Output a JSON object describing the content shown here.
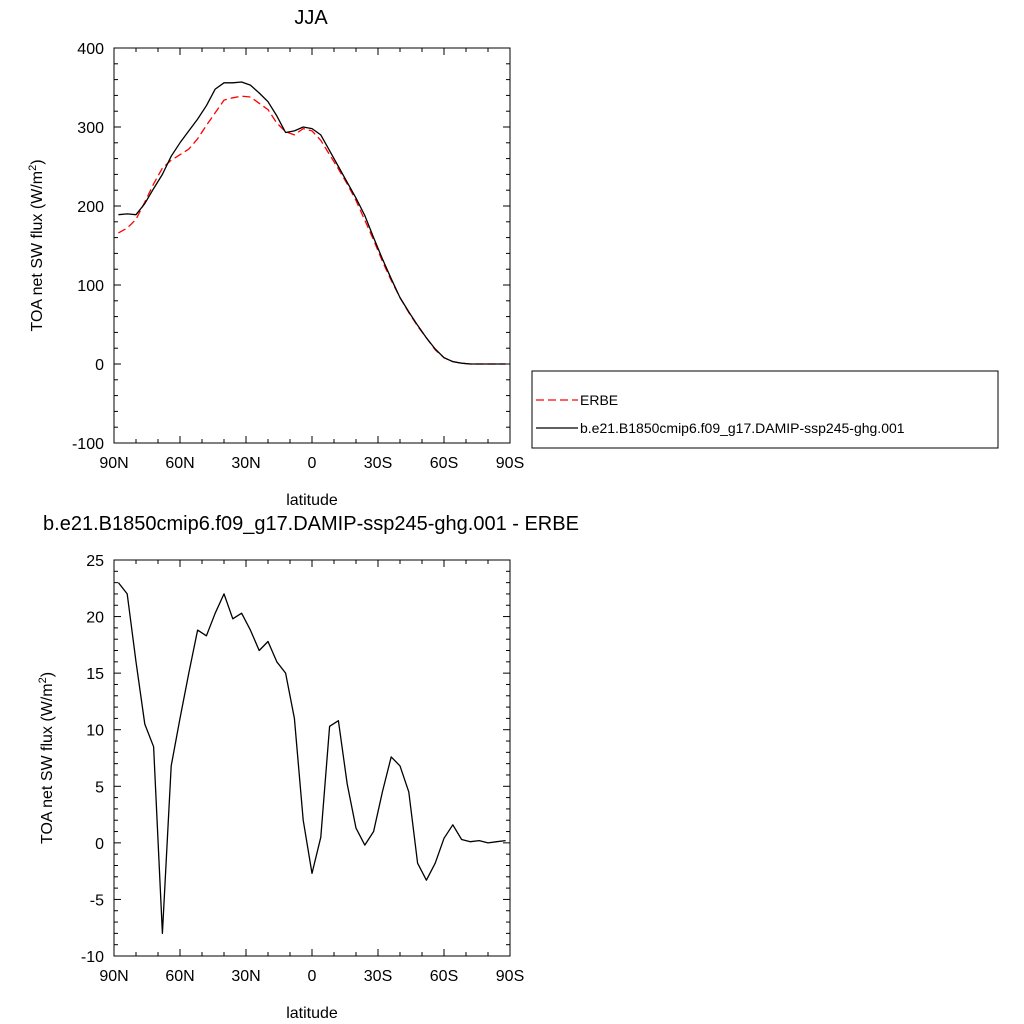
{
  "chart_data": [
    {
      "type": "line",
      "title": "JJA",
      "xlabel": "latitude",
      "ylabel": "TOA net SW flux (W/m",
      "ylabel_sup": "2",
      "ylabel_close": ")",
      "xlim": [
        90,
        -90
      ],
      "ylim": [
        -100,
        400
      ],
      "x_ticks": [
        {
          "value": 90,
          "label": "90N"
        },
        {
          "value": 60,
          "label": "60N"
        },
        {
          "value": 30,
          "label": "30N"
        },
        {
          "value": 0,
          "label": "0"
        },
        {
          "value": -30,
          "label": "30S"
        },
        {
          "value": -60,
          "label": "60S"
        },
        {
          "value": -90,
          "label": "90S"
        }
      ],
      "y_ticks": [
        {
          "value": 400,
          "label": "400"
        },
        {
          "value": 300,
          "label": "300"
        },
        {
          "value": 200,
          "label": "200"
        },
        {
          "value": 100,
          "label": "100"
        },
        {
          "value": 0,
          "label": "0"
        },
        {
          "value": -100,
          "label": "-100"
        }
      ],
      "legend_position": "right",
      "series": [
        {
          "name": "ERBE",
          "color": "#ff0000",
          "dash": "dashed",
          "x": [
            88,
            84,
            80,
            76,
            72,
            68,
            64,
            60,
            56,
            52,
            48,
            44,
            40,
            36,
            32,
            28,
            24,
            20,
            16,
            12,
            8,
            4,
            0,
            -4,
            -8,
            -12,
            -16,
            -20,
            -24,
            -28,
            -32,
            -36,
            -40,
            -44,
            -48,
            -52,
            -56,
            -60,
            -64,
            -68,
            -72,
            -76,
            -80,
            -84,
            -88
          ],
          "values": [
            166,
            172,
            183,
            205,
            228,
            248,
            258,
            265,
            272,
            285,
            302,
            318,
            334,
            337,
            339,
            338,
            330,
            322,
            305,
            294,
            290,
            298,
            295,
            283,
            265,
            247,
            228,
            207,
            182,
            157,
            130,
            106,
            84,
            65,
            48,
            33,
            18,
            8,
            3,
            1,
            0,
            0,
            0,
            0,
            0
          ]
        },
        {
          "name": "b.e21.B1850cmip6.f09_g17.DAMIP-ssp245-ghg.001",
          "color": "#000000",
          "dash": "solid",
          "x": [
            88,
            84,
            80,
            76,
            72,
            68,
            64,
            60,
            56,
            52,
            48,
            44,
            40,
            36,
            32,
            28,
            24,
            20,
            16,
            12,
            8,
            4,
            0,
            -4,
            -8,
            -12,
            -16,
            -20,
            -24,
            -28,
            -32,
            -36,
            -40,
            -44,
            -48,
            -52,
            -56,
            -60,
            -64,
            -68,
            -72,
            -76,
            -80,
            -84,
            -88
          ],
          "values": [
            189,
            190,
            189,
            203,
            222,
            240,
            263,
            280,
            295,
            310,
            327,
            348,
            356,
            356,
            357,
            353,
            343,
            332,
            314,
            293,
            295,
            300,
            298,
            290,
            270,
            250,
            230,
            210,
            188,
            160,
            133,
            108,
            84,
            66,
            49,
            33,
            19,
            8,
            3,
            1,
            0,
            0,
            0,
            0,
            0
          ]
        }
      ]
    },
    {
      "type": "line",
      "title": "b.e21.B1850cmip6.f09_g17.DAMIP-ssp245-ghg.001 - ERBE",
      "xlabel": "latitude",
      "ylabel": "TOA net SW flux (W/m",
      "ylabel_sup": "2",
      "ylabel_close": ")",
      "xlim": [
        90,
        -90
      ],
      "ylim": [
        -10,
        25
      ],
      "x_ticks": [
        {
          "value": 90,
          "label": "90N"
        },
        {
          "value": 60,
          "label": "60N"
        },
        {
          "value": 30,
          "label": "30N"
        },
        {
          "value": 0,
          "label": "0"
        },
        {
          "value": -30,
          "label": "30S"
        },
        {
          "value": -60,
          "label": "60S"
        },
        {
          "value": -90,
          "label": "90S"
        }
      ],
      "y_ticks": [
        {
          "value": 25,
          "label": "25"
        },
        {
          "value": 20,
          "label": "20"
        },
        {
          "value": 15,
          "label": "15"
        },
        {
          "value": 10,
          "label": "10"
        },
        {
          "value": 5,
          "label": "5"
        },
        {
          "value": 0,
          "label": "0"
        },
        {
          "value": -5,
          "label": "-5"
        },
        {
          "value": -10,
          "label": "-10"
        }
      ],
      "series": [
        {
          "color": "#000000",
          "dash": "solid",
          "x": [
            88,
            84,
            80,
            76,
            72,
            68,
            64,
            60,
            56,
            52,
            48,
            44,
            40,
            36,
            32,
            28,
            24,
            20,
            16,
            12,
            8,
            4,
            0,
            -4,
            -8,
            -12,
            -16,
            -20,
            -24,
            -28,
            -32,
            -36,
            -40,
            -44,
            -48,
            -52,
            -56,
            -60,
            -64,
            -68,
            -72,
            -76,
            -80,
            -84,
            -88
          ],
          "values": [
            23,
            22,
            16,
            10.5,
            8.5,
            -8,
            6.8,
            11,
            15,
            18.8,
            18.3,
            20.3,
            22,
            19.8,
            20.3,
            18.8,
            17,
            17.8,
            16,
            15,
            11,
            2,
            -2.7,
            0.5,
            10.3,
            10.8,
            5.2,
            1.3,
            -0.2,
            1,
            4.5,
            7.6,
            6.8,
            4.5,
            -1.8,
            -3.3,
            -1.8,
            0.4,
            1.6,
            0.3,
            0.1,
            0.2,
            0,
            0.1,
            0.2
          ]
        }
      ]
    }
  ]
}
